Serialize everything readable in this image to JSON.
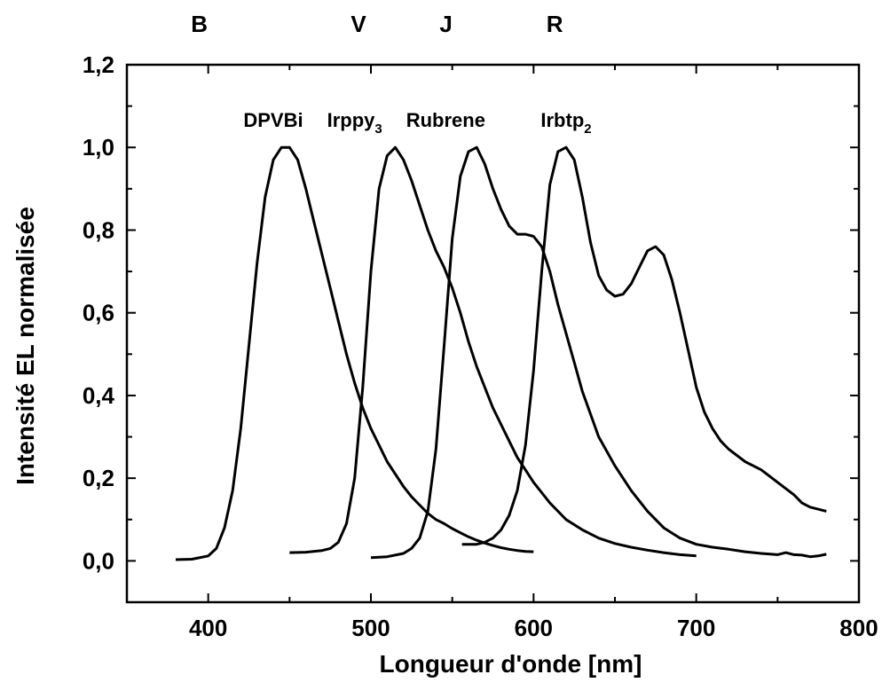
{
  "chart_data": {
    "type": "line",
    "xlabel": "Longueur d'onde [nm]",
    "ylabel": "Intensité EL normalisée",
    "xlim": [
      350,
      800
    ],
    "ylim": [
      -0.1,
      1.2
    ],
    "x_ticks": [
      400,
      500,
      600,
      700,
      800
    ],
    "y_ticks": [
      0.0,
      0.2,
      0.4,
      0.6,
      0.8,
      1.0,
      1.2
    ],
    "y_tick_labels": [
      "0,0",
      "0,2",
      "0,4",
      "0,6",
      "0,8",
      "1,0",
      "1,2"
    ],
    "grid": false,
    "band_labels": [
      {
        "text": "B",
        "x": 400
      },
      {
        "text": "V",
        "x": 500
      },
      {
        "text": "J",
        "x": 556
      },
      {
        "text": "R",
        "x": 625
      }
    ],
    "series": [
      {
        "name": "DPVBi",
        "name_sub": "",
        "label_x": 440,
        "label_y": 1.05,
        "x": [
          380,
          390,
          400,
          405,
          410,
          415,
          420,
          425,
          430,
          435,
          440,
          445,
          450,
          455,
          460,
          465,
          470,
          475,
          480,
          485,
          490,
          495,
          500,
          505,
          510,
          515,
          520,
          525,
          530,
          535,
          540,
          545,
          550,
          555,
          560,
          565,
          570,
          575,
          580,
          585,
          590,
          595,
          600
        ],
        "y": [
          0.003,
          0.004,
          0.012,
          0.03,
          0.08,
          0.17,
          0.32,
          0.52,
          0.72,
          0.88,
          0.97,
          1.0,
          1.0,
          0.97,
          0.9,
          0.82,
          0.74,
          0.66,
          0.58,
          0.5,
          0.43,
          0.37,
          0.32,
          0.28,
          0.24,
          0.21,
          0.18,
          0.155,
          0.135,
          0.115,
          0.1,
          0.09,
          0.078,
          0.068,
          0.058,
          0.05,
          0.043,
          0.037,
          0.032,
          0.028,
          0.025,
          0.023,
          0.022
        ]
      },
      {
        "name": "Irppy",
        "name_sub": "3",
        "label_x": 490,
        "label_y": 1.05,
        "x": [
          450,
          460,
          470,
          475,
          480,
          485,
          490,
          495,
          500,
          505,
          510,
          515,
          520,
          525,
          530,
          535,
          540,
          545,
          550,
          555,
          560,
          565,
          570,
          575,
          580,
          585,
          590,
          595,
          600,
          610,
          620,
          630,
          640,
          650,
          660,
          670,
          680,
          690,
          700
        ],
        "y": [
          0.02,
          0.021,
          0.025,
          0.03,
          0.045,
          0.09,
          0.2,
          0.42,
          0.7,
          0.9,
          0.98,
          1.0,
          0.97,
          0.92,
          0.86,
          0.8,
          0.75,
          0.71,
          0.66,
          0.6,
          0.53,
          0.47,
          0.42,
          0.37,
          0.33,
          0.29,
          0.25,
          0.22,
          0.19,
          0.14,
          0.1,
          0.075,
          0.055,
          0.042,
          0.033,
          0.026,
          0.02,
          0.015,
          0.012
        ]
      },
      {
        "name": "Rubrene",
        "name_sub": "",
        "label_x": 546,
        "label_y": 1.05,
        "x": [
          500,
          510,
          520,
          525,
          530,
          535,
          540,
          545,
          550,
          555,
          560,
          565,
          570,
          575,
          580,
          585,
          590,
          595,
          600,
          605,
          610,
          615,
          620,
          625,
          630,
          640,
          650,
          660,
          670,
          680,
          690,
          700,
          710,
          720,
          730,
          740,
          750,
          755,
          760,
          765,
          770,
          775,
          780
        ],
        "y": [
          0.008,
          0.01,
          0.018,
          0.03,
          0.055,
          0.12,
          0.27,
          0.52,
          0.78,
          0.93,
          0.99,
          1.0,
          0.96,
          0.9,
          0.85,
          0.81,
          0.79,
          0.79,
          0.785,
          0.76,
          0.7,
          0.62,
          0.55,
          0.48,
          0.41,
          0.3,
          0.23,
          0.17,
          0.12,
          0.08,
          0.055,
          0.04,
          0.033,
          0.028,
          0.022,
          0.018,
          0.015,
          0.02,
          0.015,
          0.014,
          0.01,
          0.012,
          0.016
        ]
      },
      {
        "name": "Irbtp",
        "name_sub": "2",
        "label_x": 620,
        "label_y": 1.05,
        "x": [
          556,
          560,
          565,
          570,
          575,
          580,
          585,
          590,
          595,
          600,
          605,
          610,
          615,
          620,
          625,
          630,
          635,
          640,
          645,
          650,
          655,
          660,
          665,
          670,
          675,
          680,
          685,
          690,
          695,
          700,
          705,
          710,
          715,
          720,
          730,
          740,
          750,
          760,
          765,
          770,
          780
        ],
        "y": [
          0.04,
          0.04,
          0.04,
          0.045,
          0.055,
          0.075,
          0.11,
          0.17,
          0.28,
          0.46,
          0.7,
          0.91,
          0.99,
          1.0,
          0.97,
          0.88,
          0.77,
          0.69,
          0.655,
          0.64,
          0.645,
          0.67,
          0.71,
          0.75,
          0.76,
          0.74,
          0.68,
          0.6,
          0.51,
          0.42,
          0.36,
          0.32,
          0.29,
          0.27,
          0.24,
          0.22,
          0.19,
          0.16,
          0.14,
          0.13,
          0.12
        ]
      }
    ]
  }
}
